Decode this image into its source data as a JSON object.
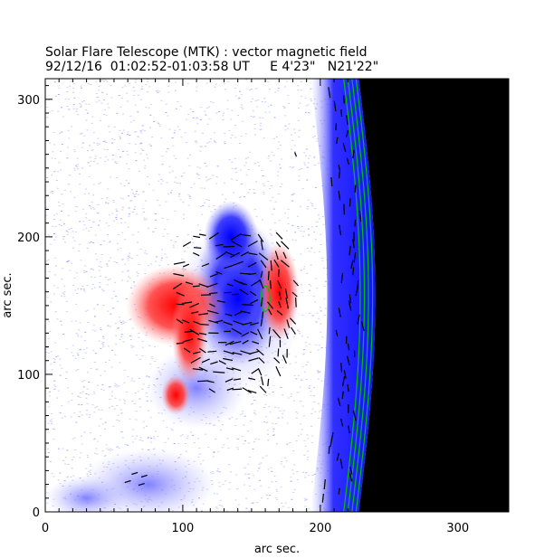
{
  "chart_data": {
    "type": "heatmap",
    "title": "Solar Flare Telescope (MTK) : vector magnetic field",
    "subtitle": "92/12/16  01:02:52-01:03:58 UT     E 4'23\"   N21'22\"",
    "xlabel": "arc sec.",
    "ylabel": "arc sec.",
    "xlim": [
      0,
      337
    ],
    "ylim": [
      0,
      315
    ],
    "xticks": [
      0,
      100,
      200,
      300
    ],
    "yticks": [
      0,
      100,
      200,
      300
    ],
    "colormap": {
      "negative_polarity": "#0000ff",
      "positive_polarity": "#ff0000",
      "background": "#ffffff",
      "off_disk": "#000000",
      "contours": "#00c000",
      "vectors": "#000000"
    },
    "features": [
      {
        "name": "negative-polarity-core",
        "polarity": "negative",
        "x": 140,
        "y": 160
      },
      {
        "name": "positive-polarity-west",
        "polarity": "positive",
        "x": 95,
        "y": 150
      },
      {
        "name": "positive-polarity-east",
        "polarity": "positive",
        "x": 170,
        "y": 160
      },
      {
        "name": "weak-negative-southwest",
        "polarity": "negative",
        "x": 75,
        "y": 20
      },
      {
        "name": "solar-limb",
        "polarity": "limb",
        "x": 240,
        "y": 150
      }
    ]
  }
}
